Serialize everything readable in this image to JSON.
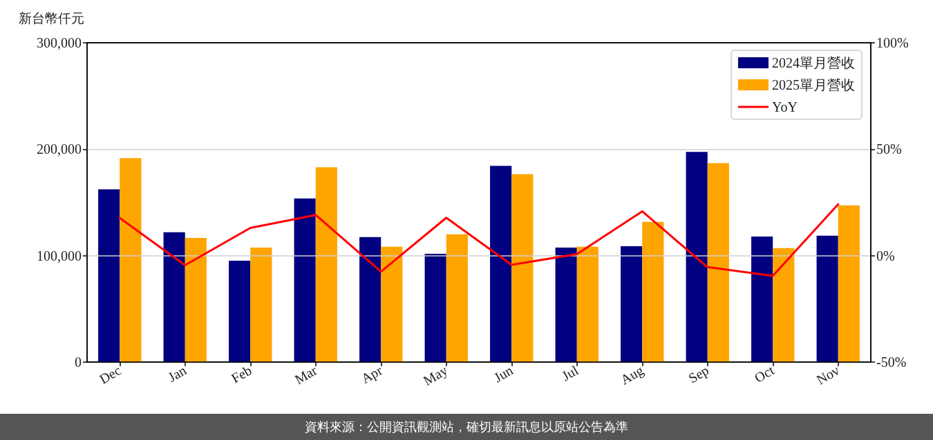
{
  "chart_data": {
    "type": "bar",
    "ylabel": "新台幣仟元",
    "categories": [
      "Dec",
      "Jan",
      "Feb",
      "Mar",
      "Apr",
      "May",
      "Jun",
      "Jul",
      "Aug",
      "Sep",
      "Oct",
      "Nov"
    ],
    "series": [
      {
        "name": "2024單月營收",
        "color": "#000080",
        "values": [
          162300,
          121900,
          95300,
          153800,
          117400,
          101800,
          184400,
          107600,
          108900,
          197500,
          118000,
          118700
        ]
      },
      {
        "name": "2025單月營收",
        "color": "#ffa500",
        "values": [
          191600,
          116700,
          107600,
          183100,
          108300,
          120000,
          176600,
          108300,
          131700,
          187000,
          107000,
          147300
        ]
      },
      {
        "name": "YoY",
        "type": "line",
        "axis": "y2",
        "color": "#ff0000",
        "values": [
          17.7,
          -4.5,
          13.0,
          19.1,
          -7.5,
          17.8,
          -4.3,
          0.7,
          20.8,
          -5.4,
          -9.5,
          24.1
        ]
      }
    ],
    "ylim": [
      0,
      300000
    ],
    "yticks": [
      0,
      {
        "value": 100000,
        "label": "100,000"
      },
      {
        "value": 200000,
        "label": "200,000"
      },
      {
        "value": 300000,
        "label": "300,000"
      }
    ],
    "y2lim": [
      -50,
      100
    ],
    "y2ticks": [
      {
        "value": -50,
        "label": "-50%"
      },
      {
        "value": 0,
        "label": "0%"
      },
      {
        "value": 50,
        "label": "50%"
      },
      {
        "value": 100,
        "label": "100%"
      }
    ],
    "grid": "y",
    "legend": "top right",
    "marker": "none",
    "line_style": "solid",
    "annotations": [
      "資料來源：公開資訊觀測站，確切最新訊息以原站公告為準"
    ]
  }
}
